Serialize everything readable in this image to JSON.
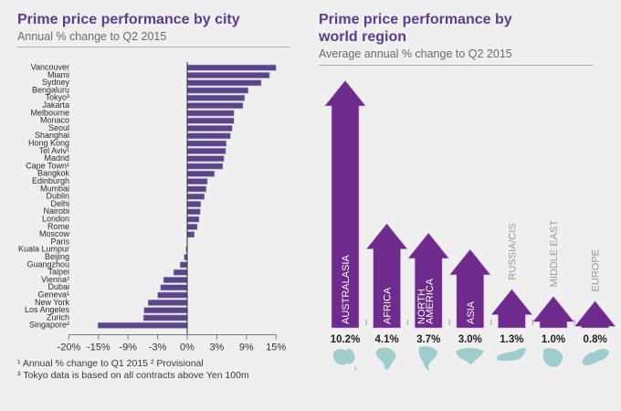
{
  "left": {
    "title": "Prime price performance by city",
    "subtitle": "Annual % change to Q2 2015",
    "footnotes": [
      "¹ Annual % change to Q1 2015  ² Provisional",
      "³ Tokyo data is based on all contracts above Yen 100m"
    ]
  },
  "right": {
    "title_line1": "Prime price performance by",
    "title_line2": "world region",
    "subtitle": "Average annual % change to Q2 2015"
  },
  "colors": {
    "city_bar": "#5a4589",
    "region_arrow": "#6e2a8c",
    "map": "#9fcccc",
    "title": "#5c3d8f"
  },
  "chart_data": [
    {
      "type": "bar",
      "orientation": "horizontal",
      "title": "Prime price performance by city",
      "subtitle": "Annual % change to Q2 2015",
      "xlabel": "",
      "ylabel": "",
      "xlim": [
        -20,
        15
      ],
      "x_tick_labels": [
        "-20%",
        "-15%",
        "-9%",
        "-3%",
        "0%",
        "3%",
        "9%",
        "15%"
      ],
      "categories": [
        "Vancouver",
        "Miami",
        "Sydney",
        "Bengaluru",
        "Tokyo³",
        "Jakarta",
        "Melbourne",
        "Monaco",
        "Seoul",
        "Shanghai",
        "Hong Kong",
        "Tel Aviv¹",
        "Madrid",
        "Cape Town¹",
        "Bangkok",
        "Edinburgh",
        "Mumbai",
        "Dublin",
        "Delhi",
        "Nairobi",
        "London",
        "Rome",
        "Moscow",
        "Paris",
        "Kuala Lumpur",
        "Beijing",
        "Guangzhou",
        "Taipei",
        "Vienna²",
        "Dubai",
        "Geneva¹",
        "New York",
        "Los Angeles",
        "Zurich",
        "Singapore²"
      ],
      "values": [
        15.0,
        13.9,
        12.5,
        10.3,
        9.7,
        9.4,
        7.9,
        7.9,
        7.6,
        7.3,
        6.6,
        6.5,
        6.2,
        6.0,
        4.6,
        3.4,
        3.2,
        2.9,
        2.3,
        2.2,
        2.0,
        1.7,
        1.2,
        0.0,
        -0.2,
        -0.5,
        -1.2,
        -2.3,
        -4.0,
        -4.5,
        -5.0,
        -6.6,
        -7.3,
        -7.4,
        -15.1
      ],
      "grid": false,
      "legend": "none"
    },
    {
      "type": "bar",
      "orientation": "vertical",
      "style": "arrows",
      "title": "Prime price performance by world region",
      "subtitle": "Average annual % change to Q2 2015",
      "categories": [
        "AUSTRALASIA",
        "AFRICA",
        "NORTH AMERICA",
        "ASIA",
        "RUSSIA/CIS",
        "MIDDLE EAST",
        "EUROPE"
      ],
      "values": [
        10.2,
        4.1,
        3.7,
        3.0,
        1.3,
        1.0,
        0.8
      ],
      "value_labels": [
        "10.2%",
        "4.1%",
        "3.7%",
        "3.0%",
        "1.3%",
        "1.0%",
        "0.8%"
      ],
      "label_inside": [
        true,
        true,
        true,
        true,
        false,
        false,
        false
      ],
      "map_icons": [
        "australasia-map",
        "africa-map",
        "north-america-map",
        "asia-map",
        "russia-cis-map",
        "middle-east-map",
        "europe-map"
      ],
      "grid": false,
      "legend": "none"
    }
  ]
}
